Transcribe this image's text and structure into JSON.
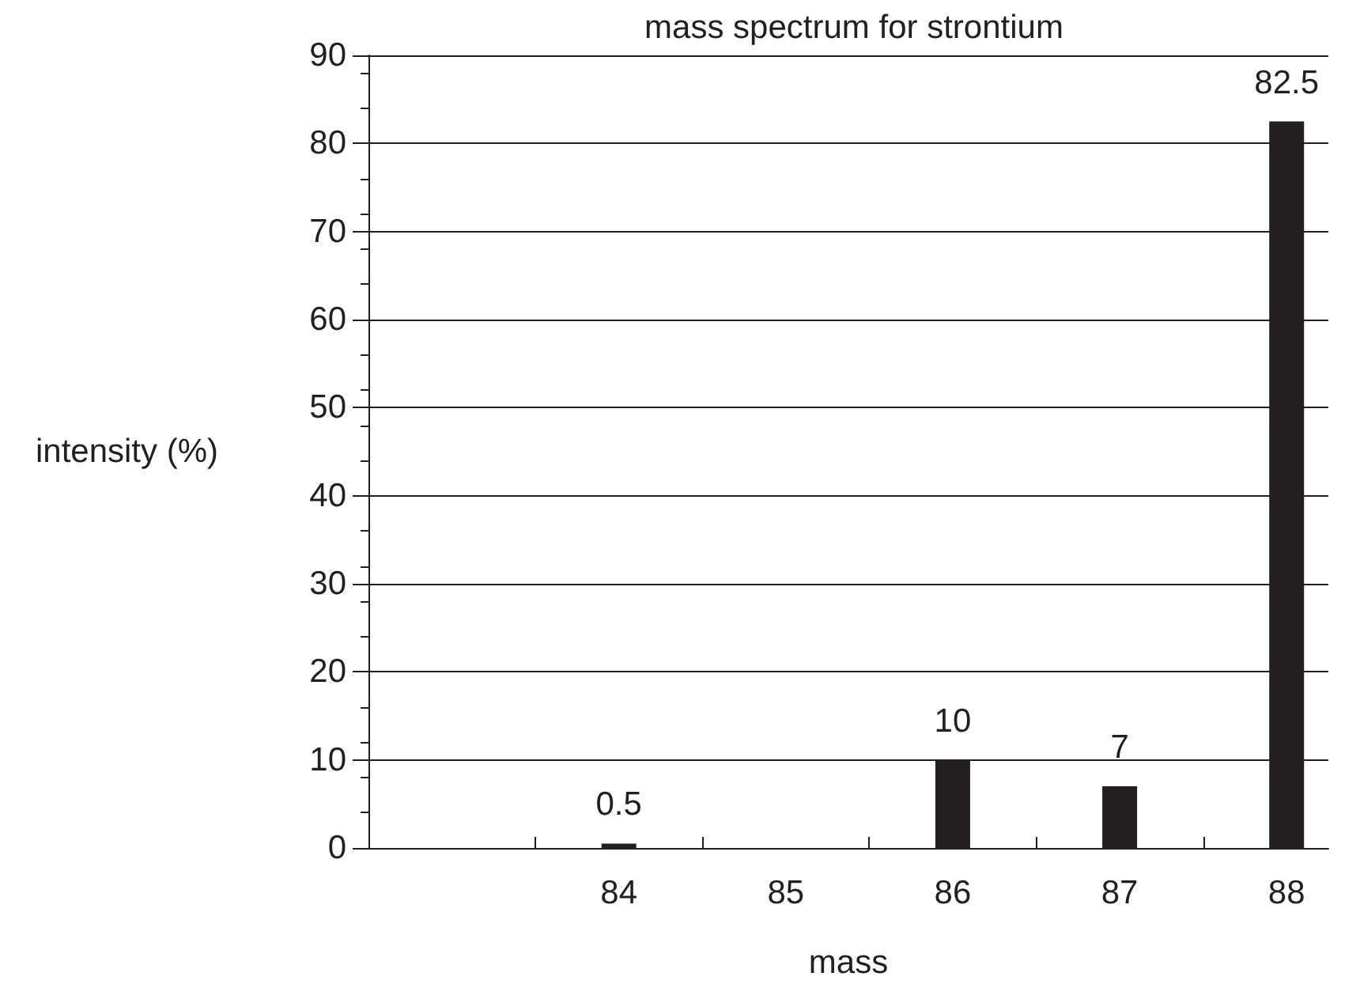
{
  "chart_data": {
    "type": "bar",
    "title": "mass spectrum for strontium",
    "xlabel": "mass",
    "ylabel": "intensity (%)",
    "x": [
      84,
      86,
      87,
      88
    ],
    "values": [
      0.5,
      10,
      7,
      82.5
    ],
    "color": "#231f20",
    "data_labels": true,
    "xlim": [
      82.5,
      88.25
    ],
    "xticks": [
      {
        "value": 83.5,
        "label": null
      },
      {
        "value": 84,
        "label": "84"
      },
      {
        "value": 84.5,
        "label": null
      },
      {
        "value": 85,
        "label": "85"
      },
      {
        "value": 85.5,
        "label": null
      },
      {
        "value": 86,
        "label": "86"
      },
      {
        "value": 86.5,
        "label": null
      },
      {
        "value": 87,
        "label": "87"
      },
      {
        "value": 87.5,
        "label": null
      },
      {
        "value": 88,
        "label": "88"
      }
    ],
    "ylim": [
      0,
      90
    ],
    "yticks": [
      0,
      10,
      20,
      30,
      40,
      50,
      60,
      70,
      80,
      90
    ],
    "grid": "y"
  }
}
